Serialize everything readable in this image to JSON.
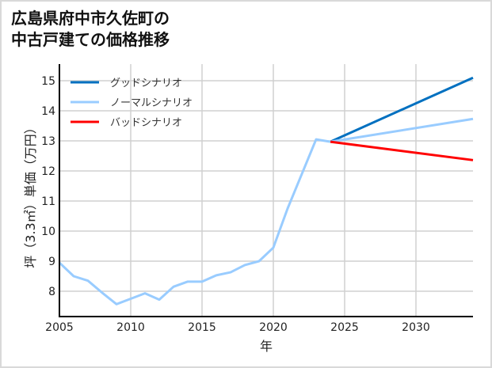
{
  "title_lines": [
    "広島県府中市久佐町の",
    "中古戸建ての価格推移"
  ],
  "chart_data": {
    "type": "line",
    "title": "広島県府中市久佐町の中古戸建ての価格推移",
    "xlabel": "年",
    "ylabel": "坪（3.3㎡）単価（万円）",
    "xlim": [
      2005,
      2034
    ],
    "ylim": [
      7.2,
      15.5
    ],
    "x_ticks": [
      2005,
      2010,
      2015,
      2020,
      2025,
      2030
    ],
    "y_ticks": [
      8,
      9,
      10,
      11,
      12,
      13,
      14,
      15
    ],
    "grid": true,
    "legend_position": "upper left",
    "historical": {
      "x": [
        2005,
        2006,
        2007,
        2008,
        2009,
        2010,
        2011,
        2012,
        2013,
        2014,
        2015,
        2016,
        2017,
        2018,
        2019,
        2020,
        2021,
        2022,
        2023,
        2024
      ],
      "values": [
        8.95,
        8.5,
        8.35,
        7.95,
        7.57,
        7.75,
        7.93,
        7.72,
        8.15,
        8.32,
        8.32,
        8.53,
        8.63,
        8.87,
        9.0,
        9.45,
        10.75,
        11.9,
        13.05,
        12.97
      ],
      "color": "#99ccff"
    },
    "series": [
      {
        "name": "グッドシナリオ",
        "color": "#0070c0",
        "x": [
          2024,
          2034
        ],
        "values": [
          12.97,
          15.1
        ]
      },
      {
        "name": "ノーマルシナリオ",
        "color": "#99ccff",
        "x": [
          2024,
          2034
        ],
        "values": [
          12.97,
          13.73
        ]
      },
      {
        "name": "バッドシナリオ",
        "color": "#ff0000",
        "x": [
          2024,
          2034
        ],
        "values": [
          12.97,
          12.36
        ]
      }
    ]
  }
}
